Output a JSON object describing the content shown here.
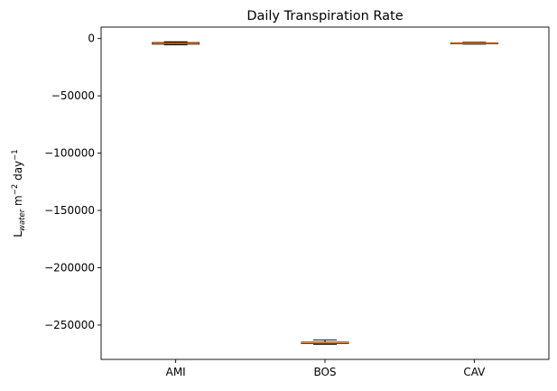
{
  "chart_data": {
    "type": "box",
    "title": "Daily Transpiration Rate",
    "ylabel": {
      "base": "L",
      "subscript": "water",
      "unit_a": " m",
      "exp_a": "−2",
      "unit_b": " day",
      "exp_b": "−1"
    },
    "categories": [
      "AMI",
      "BOS",
      "CAV"
    ],
    "ylim": [
      -280000,
      10000
    ],
    "yticks": [
      0,
      -50000,
      -100000,
      -150000,
      -200000,
      -250000
    ],
    "ytick_labels": [
      "0",
      "−50000",
      "−100000",
      "−150000",
      "−200000",
      "−250000"
    ],
    "boxes": [
      {
        "category": "AMI",
        "whisker_low": -5500,
        "q1": -4900,
        "median": -4200,
        "q3": -3500,
        "whisker_high": -2800
      },
      {
        "category": "BOS",
        "whisker_low": -266800,
        "q1": -266200,
        "median": -265600,
        "q3": -265000,
        "whisker_high": -263000
      },
      {
        "category": "CAV",
        "whisker_low": -4900,
        "q1": -4500,
        "median": -4100,
        "q3": -3700,
        "whisker_high": -3300
      }
    ],
    "grid": false,
    "colors": {
      "box": "#000000",
      "median": "#ff7f0e"
    }
  }
}
